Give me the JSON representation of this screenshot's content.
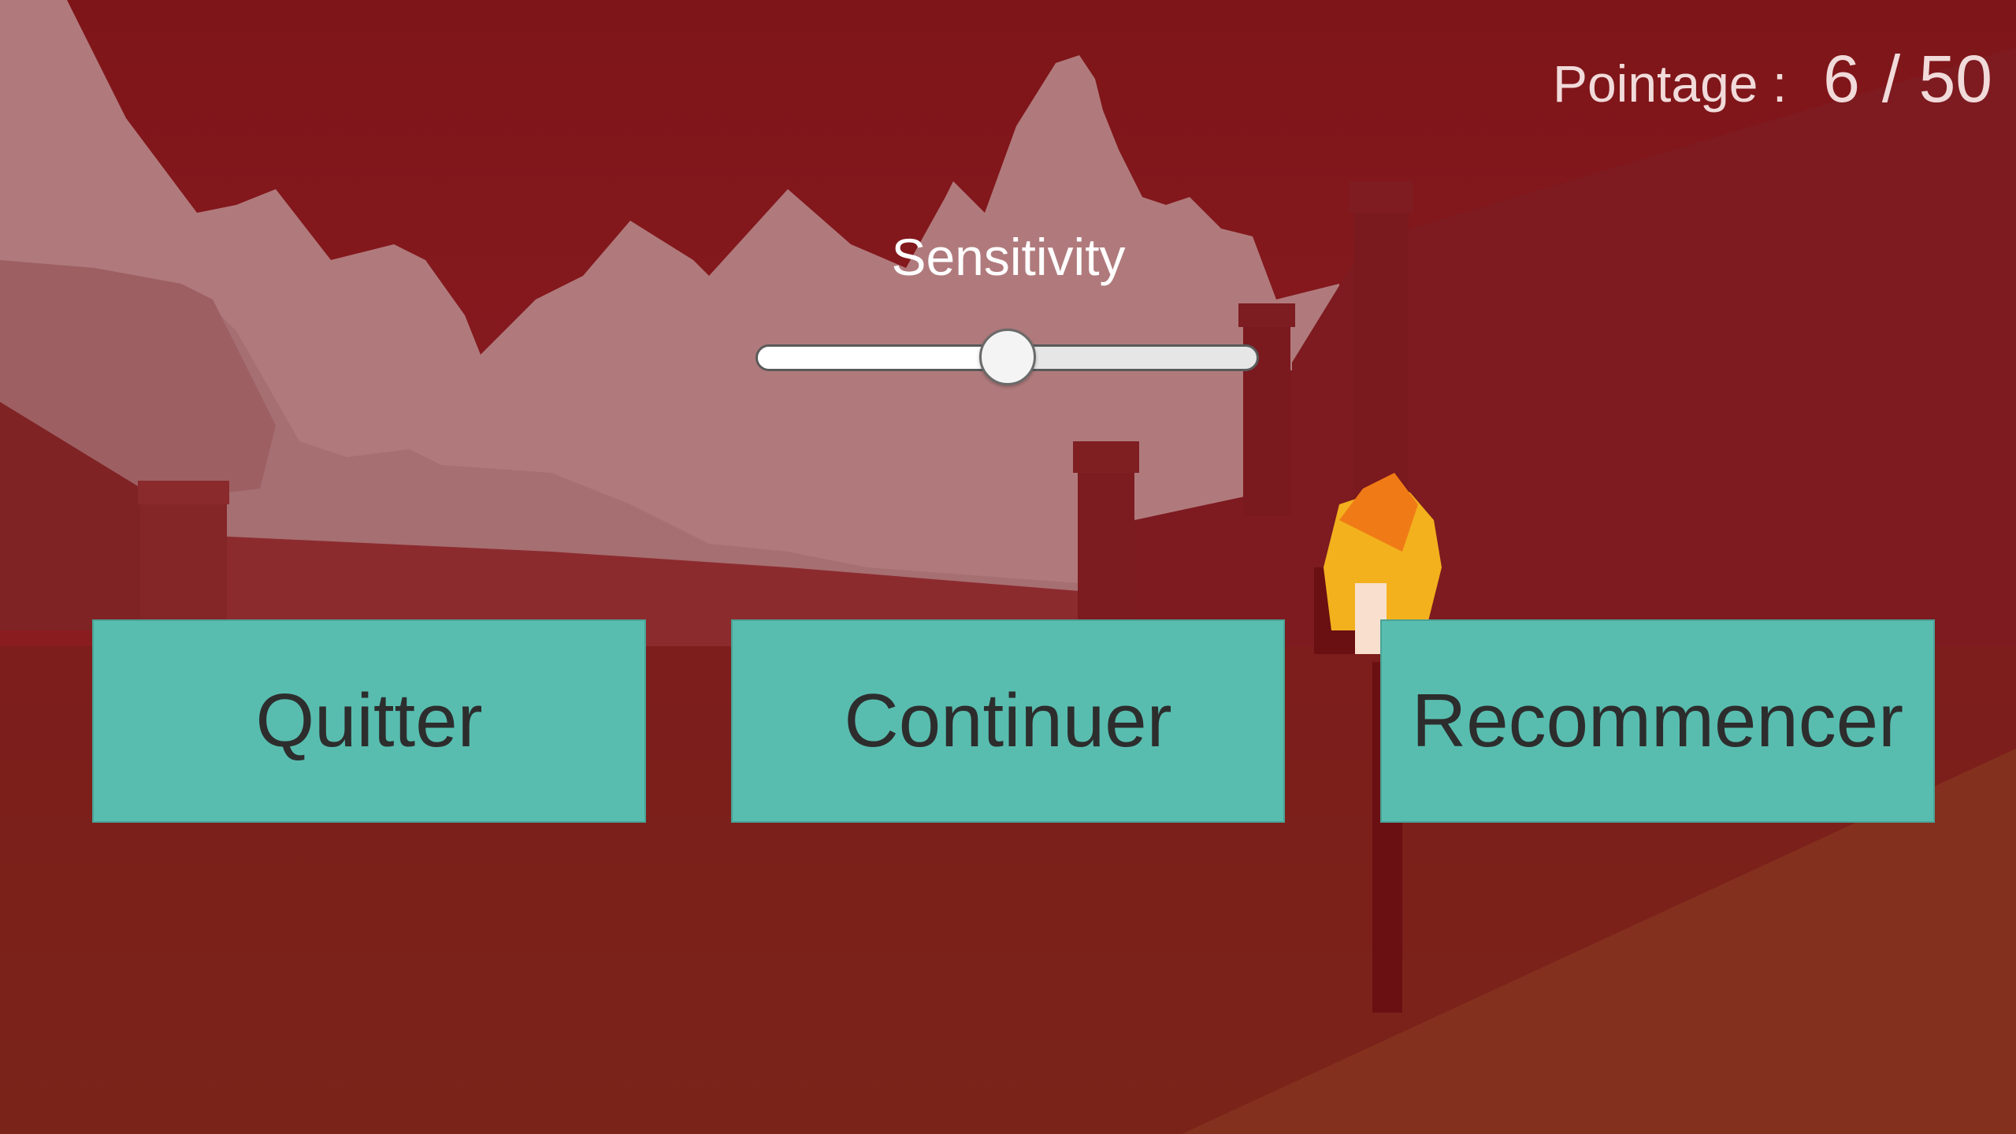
{
  "hud": {
    "score_label": "Pointage :",
    "score_value": "6",
    "score_max": "/ 50"
  },
  "settings": {
    "sensitivity_label": "Sensitivity",
    "sensitivity_value": 0.5
  },
  "menu": {
    "quit_label": "Quitter",
    "continue_label": "Continuer",
    "restart_label": "Recommencer"
  },
  "colors": {
    "overlay_red": "#8a1c1f",
    "button_teal": "#58bdaf",
    "button_text": "#2d2d2d"
  }
}
